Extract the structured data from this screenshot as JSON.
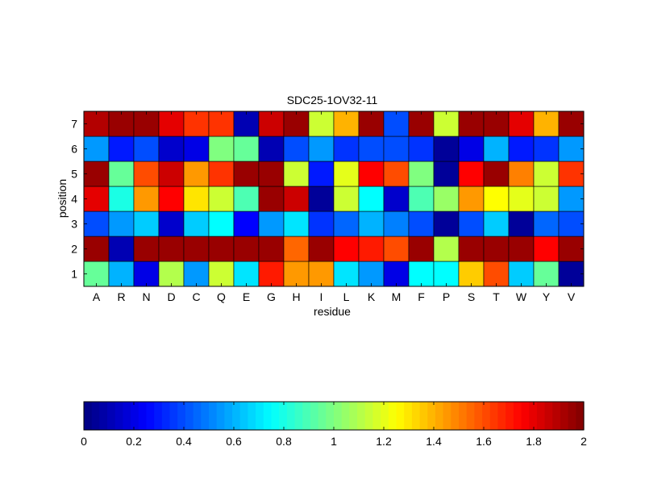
{
  "chart_data": {
    "type": "heatmap",
    "title": "SDC25-1OV32-11",
    "xlabel": "residue",
    "ylabel": "position",
    "x_categories": [
      "A",
      "R",
      "N",
      "D",
      "C",
      "Q",
      "E",
      "G",
      "H",
      "I",
      "L",
      "K",
      "M",
      "F",
      "P",
      "S",
      "T",
      "W",
      "Y",
      "V"
    ],
    "y_categories": [
      "1",
      "2",
      "3",
      "4",
      "5",
      "6",
      "7"
    ],
    "values": [
      [
        0.95,
        0.6,
        0.2,
        1.1,
        0.55,
        1.15,
        0.7,
        1.7,
        1.45,
        1.45,
        0.7,
        0.55,
        0.2,
        0.75,
        0.75,
        1.35,
        1.6,
        0.65,
        0.95,
        0.05
      ],
      [
        1.95,
        0.1,
        1.95,
        1.95,
        1.95,
        1.95,
        1.95,
        1.95,
        1.55,
        1.95,
        1.75,
        1.7,
        1.6,
        1.95,
        1.1,
        1.95,
        1.95,
        1.95,
        1.75,
        1.95
      ],
      [
        0.4,
        0.55,
        0.65,
        0.15,
        0.65,
        0.75,
        0.25,
        0.55,
        0.7,
        0.35,
        0.45,
        0.6,
        0.5,
        0.4,
        0.05,
        0.4,
        0.65,
        0.05,
        0.45,
        0.4
      ],
      [
        1.8,
        0.8,
        1.45,
        1.75,
        1.3,
        1.15,
        0.9,
        1.95,
        1.85,
        0.05,
        1.15,
        0.75,
        0.15,
        0.9,
        1.05,
        1.45,
        1.25,
        1.2,
        1.15,
        0.55
      ],
      [
        1.95,
        0.95,
        1.6,
        1.85,
        1.45,
        1.65,
        1.95,
        1.95,
        1.15,
        0.3,
        1.2,
        1.75,
        1.6,
        1.0,
        0.05,
        1.75,
        1.95,
        1.5,
        1.15,
        1.65
      ],
      [
        0.55,
        0.3,
        0.4,
        0.15,
        0.2,
        1.0,
        0.95,
        0.1,
        0.4,
        0.55,
        0.35,
        0.4,
        0.4,
        0.35,
        0.05,
        0.2,
        0.6,
        0.3,
        0.35,
        0.55
      ],
      [
        1.9,
        1.95,
        1.95,
        1.8,
        1.65,
        1.65,
        0.1,
        1.85,
        1.95,
        1.15,
        1.4,
        1.95,
        0.4,
        1.95,
        1.15,
        1.95,
        1.95,
        1.8,
        1.4,
        1.95
      ]
    ],
    "colorbar": {
      "range": [
        0,
        2
      ],
      "ticks": [
        0,
        0.2,
        0.4,
        0.6,
        0.8,
        1,
        1.2,
        1.4,
        1.6,
        1.8,
        2
      ],
      "tick_labels": [
        "0",
        "0.2",
        "0.4",
        "0.6",
        "0.8",
        "1",
        "1.2",
        "1.4",
        "1.6",
        "1.8",
        "2"
      ],
      "orientation": "horizontal",
      "colormap": "jet",
      "steps": 64
    },
    "grid": false
  }
}
